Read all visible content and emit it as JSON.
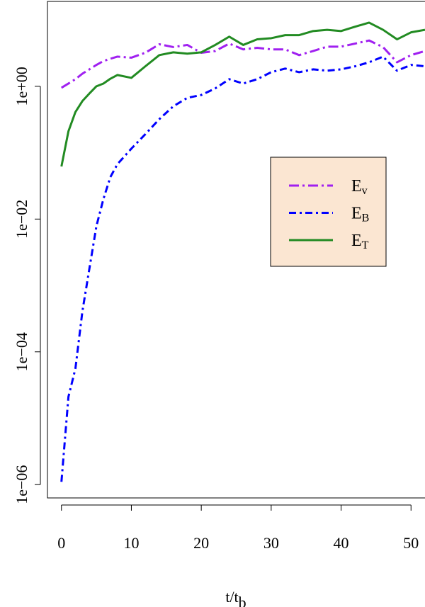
{
  "chart_data": {
    "type": "line",
    "x_label": "t/t",
    "x_label_sub": "b",
    "log_y": true,
    "xlim": [
      -2,
      52
    ],
    "ylim": [
      6.3e-07,
      19
    ],
    "xticks": [
      0,
      10,
      20,
      30,
      40,
      50
    ],
    "yticks": [
      {
        "value": 1e-06,
        "label": "1e−06"
      },
      {
        "value": 0.0001,
        "label": "1e−04"
      },
      {
        "value": 0.01,
        "label": "1e−02"
      },
      {
        "value": 1,
        "label": "1e+00"
      }
    ],
    "legend_position": "right",
    "legend_background": "#fbe6d2",
    "x": [
      0,
      1,
      2,
      3,
      4,
      5,
      6,
      7,
      8,
      10,
      12,
      14,
      16,
      18,
      20,
      22,
      24,
      26,
      28,
      30,
      32,
      34,
      36,
      38,
      40,
      42,
      44,
      46,
      48,
      50,
      52
    ],
    "series": [
      {
        "name": "E",
        "subscript": "v",
        "color": "#a020f0",
        "dash": "14,5,3,5",
        "values": [
          0.95,
          1.1,
          1.28,
          1.55,
          1.8,
          2.1,
          2.4,
          2.6,
          2.8,
          2.7,
          3.2,
          4.3,
          3.9,
          4.2,
          3.2,
          3.4,
          4.4,
          3.6,
          3.8,
          3.6,
          3.6,
          2.95,
          3.4,
          3.96,
          3.96,
          4.4,
          4.9,
          3.9,
          2.3,
          2.95,
          3.4
        ]
      },
      {
        "name": "E",
        "subscript": "B",
        "color": "#0000ff",
        "dash": "10,5,3,5",
        "values": [
          1.1e-06,
          2.1e-05,
          5.6e-05,
          0.00041,
          0.0018,
          0.0078,
          0.02,
          0.043,
          0.067,
          0.115,
          0.19,
          0.32,
          0.5,
          0.67,
          0.74,
          0.93,
          1.28,
          1.1,
          1.28,
          1.63,
          1.85,
          1.63,
          1.8,
          1.72,
          1.8,
          2.0,
          2.3,
          2.8,
          1.72,
          2.1,
          2.0
        ]
      },
      {
        "name": "E",
        "subscript": "T",
        "color": "#228b22",
        "dash": "none",
        "values": [
          0.062,
          0.21,
          0.41,
          0.6,
          0.78,
          1.0,
          1.1,
          1.3,
          1.48,
          1.34,
          2.0,
          2.95,
          3.25,
          3.1,
          3.25,
          4.2,
          5.6,
          4.2,
          5.1,
          5.3,
          5.9,
          5.9,
          6.8,
          7.1,
          6.8,
          7.9,
          9.1,
          7.1,
          5.1,
          6.5,
          7.1
        ]
      }
    ]
  }
}
